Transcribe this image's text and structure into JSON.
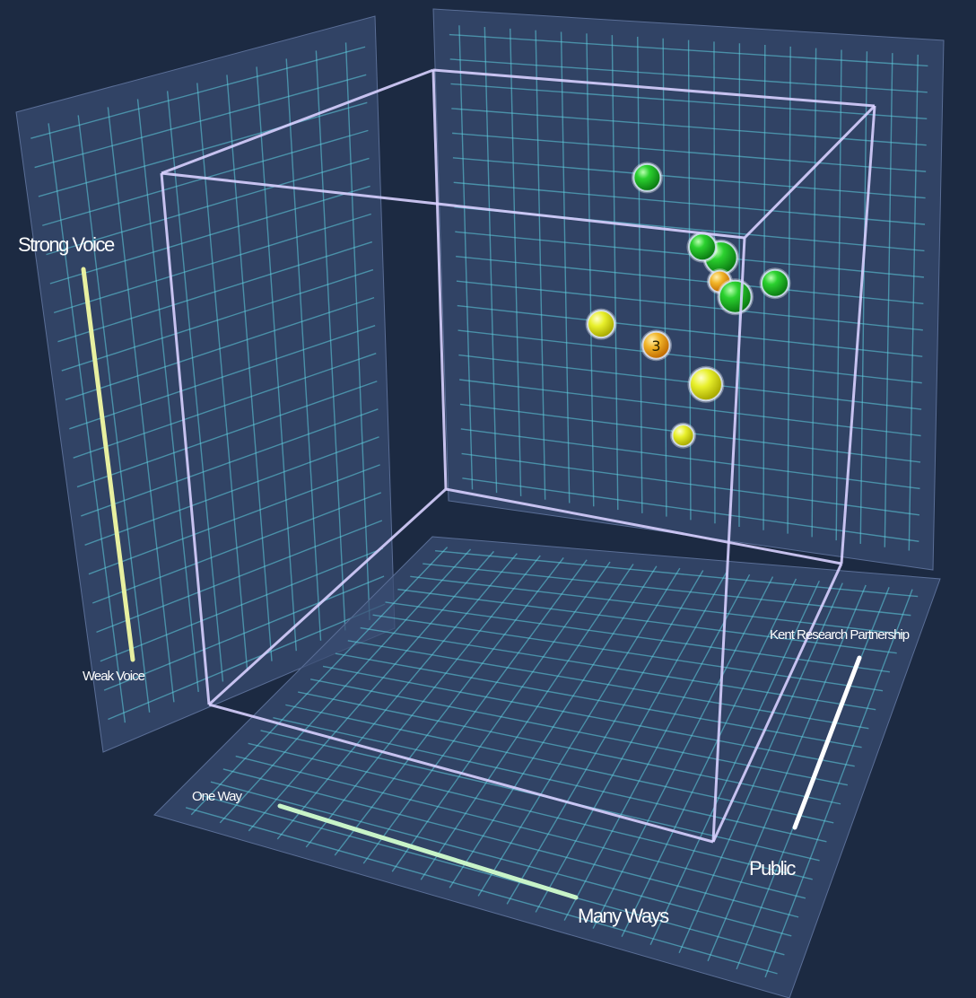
{
  "chart_data": {
    "type": "scatter",
    "title": "",
    "axes": {
      "voice": {
        "min_label": "Weak Voice",
        "max_label": "Strong Voice"
      },
      "ways": {
        "min_label": "One Way",
        "max_label": "Many Ways"
      },
      "partnership": {
        "min_label": "Public",
        "max_label": "Kent Research Partnership"
      }
    },
    "colors": {
      "background": "#1c2a42",
      "green": "#1fc62a",
      "yellow": "#e4ee2a",
      "orange": "#f0a020",
      "cube_edge": "#d8d0ff",
      "grid_line": "#5fd0e0"
    },
    "points": [
      {
        "color": "green",
        "ways": 0.05,
        "partnership": 0.05,
        "voice": 0.95,
        "size": "large"
      },
      {
        "color": "orange",
        "ways": 0.05,
        "partnership": 0.05,
        "voice": 0.91,
        "size": "small",
        "label": ""
      },
      {
        "color": "green",
        "ways": 0.48,
        "partnership": 0.93,
        "voice": 0.82,
        "size": "medium"
      },
      {
        "color": "green",
        "ways": 0.35,
        "partnership": 0.93,
        "voice": 0.68,
        "size": "medium"
      },
      {
        "color": "green",
        "ways": 0.18,
        "partnership": 0.93,
        "voice": 0.62,
        "size": "medium"
      },
      {
        "color": "green",
        "ways": 0.27,
        "partnership": 0.93,
        "voice": 0.58,
        "size": "large"
      },
      {
        "color": "yellow",
        "ways": 0.58,
        "partnership": 0.93,
        "voice": 0.48,
        "size": "medium"
      },
      {
        "color": "orange",
        "ways": 0.45,
        "partnership": 0.93,
        "voice": 0.45,
        "size": "medium",
        "label": "3"
      },
      {
        "color": "yellow",
        "ways": 0.33,
        "partnership": 0.93,
        "voice": 0.38,
        "size": "large"
      },
      {
        "color": "yellow",
        "ways": 0.38,
        "partnership": 0.93,
        "voice": 0.26,
        "size": "small"
      }
    ],
    "grid": true
  }
}
